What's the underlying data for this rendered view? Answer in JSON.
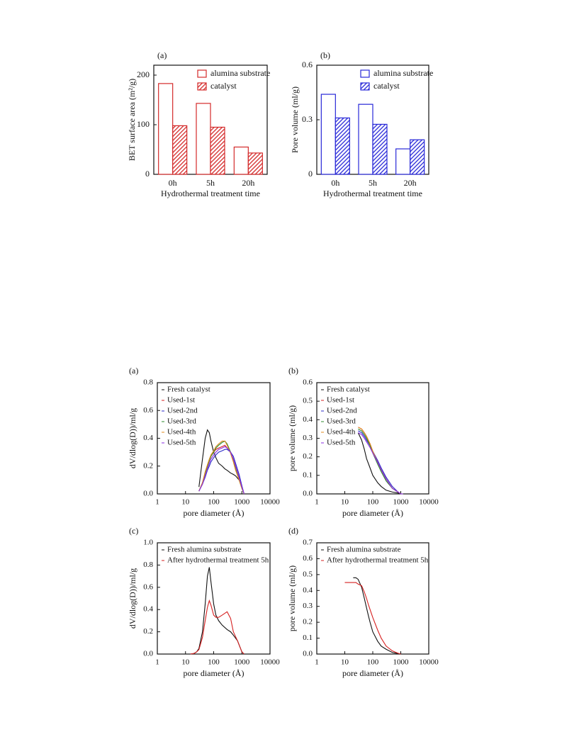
{
  "chart_data": [
    {
      "type": "bar",
      "panel_label": "(a)",
      "x_label": "Hydrothermal treatment time",
      "y_label": "BET surface area (m²/g)",
      "categories": [
        "0h",
        "5h",
        "20h"
      ],
      "series": [
        {
          "name": "alumina substrate",
          "color": "#d42a2a",
          "values": [
            183,
            143,
            55
          ]
        },
        {
          "name": "catalyst",
          "color": "#d42a2a",
          "values": [
            98,
            95,
            43
          ]
        }
      ],
      "ylim": [
        0,
        220
      ],
      "yticks": [
        0,
        100,
        200
      ],
      "legend": "upper right"
    },
    {
      "type": "bar",
      "panel_label": "(b)",
      "x_label": "Hydrothermal treatment time",
      "y_label": "Pore volume (ml/g)",
      "categories": [
        "0h",
        "5h",
        "20h"
      ],
      "series": [
        {
          "name": "alumina substrate",
          "color": "#2828d8",
          "values": [
            0.44,
            0.385,
            0.14
          ]
        },
        {
          "name": "catalyst",
          "color": "#2828d8",
          "values": [
            0.31,
            0.275,
            0.19
          ]
        }
      ],
      "ylim": [
        0,
        0.6
      ],
      "yticks": [
        0,
        0.3,
        0.6
      ],
      "legend": "upper right"
    },
    {
      "type": "line",
      "panel_label": "(a)",
      "x_label": "pore diameter (Å)",
      "y_label": "dV/dlog(D))/ml/g",
      "log_x": true,
      "x": [
        30,
        40,
        50,
        60,
        70,
        80,
        100,
        120,
        150,
        200,
        250,
        300,
        400,
        500,
        600,
        800,
        1000,
        1200
      ],
      "series": [
        {
          "name": "Fresh catalyst",
          "color": "#111111",
          "values": [
            0.05,
            0.25,
            0.4,
            0.46,
            0.44,
            0.38,
            0.3,
            0.26,
            0.22,
            0.2,
            0.18,
            0.17,
            0.15,
            0.14,
            0.13,
            0.1,
            0.05,
            0
          ]
        },
        {
          "name": "Used-1st",
          "color": "#d62020",
          "values": [
            0.02,
            0.08,
            0.15,
            0.2,
            0.24,
            0.27,
            0.3,
            0.32,
            0.33,
            0.34,
            0.35,
            0.33,
            0.3,
            0.25,
            0.2,
            0.12,
            0.05,
            0
          ]
        },
        {
          "name": "Used-2nd",
          "color": "#2c2cc8",
          "values": [
            0.02,
            0.07,
            0.12,
            0.17,
            0.2,
            0.23,
            0.26,
            0.28,
            0.3,
            0.31,
            0.32,
            0.32,
            0.3,
            0.27,
            0.22,
            0.14,
            0.06,
            0
          ]
        },
        {
          "name": "Used-3rd",
          "color": "#2e8b2e",
          "values": [
            0.02,
            0.08,
            0.15,
            0.2,
            0.24,
            0.27,
            0.3,
            0.33,
            0.35,
            0.37,
            0.38,
            0.36,
            0.3,
            0.24,
            0.18,
            0.1,
            0.04,
            0
          ]
        },
        {
          "name": "Used-4th",
          "color": "#e08a1e",
          "values": [
            0.02,
            0.08,
            0.16,
            0.21,
            0.25,
            0.28,
            0.31,
            0.34,
            0.36,
            0.38,
            0.38,
            0.35,
            0.29,
            0.23,
            0.17,
            0.1,
            0.04,
            0
          ]
        },
        {
          "name": "Used-5th",
          "color": "#8a2be2",
          "values": [
            0.02,
            0.07,
            0.13,
            0.18,
            0.22,
            0.25,
            0.28,
            0.3,
            0.32,
            0.33,
            0.34,
            0.33,
            0.3,
            0.25,
            0.2,
            0.12,
            0.05,
            0
          ]
        }
      ],
      "xlim": [
        1,
        10000
      ],
      "xticks": [
        1,
        10,
        100,
        1000,
        10000
      ],
      "ylim": [
        0,
        0.8
      ],
      "yticks": [
        {
          "value": 0,
          "label": "0.0"
        },
        0.2,
        0.4,
        0.6,
        0.8
      ],
      "legend": "upper left"
    },
    {
      "type": "line",
      "panel_label": "(b)",
      "x_label": "pore diameter (Å)",
      "y_label": "pore volume (ml/g)",
      "log_x": true,
      "x": [
        30,
        40,
        50,
        60,
        80,
        100,
        150,
        200,
        300,
        500,
        800,
        1000,
        1200
      ],
      "series": [
        {
          "name": "Fresh catalyst",
          "color": "#111111",
          "values": [
            0.33,
            0.29,
            0.24,
            0.19,
            0.14,
            0.1,
            0.06,
            0.04,
            0.02,
            0.01,
            0.005,
            0,
            0
          ]
        },
        {
          "name": "Used-1st",
          "color": "#d62020",
          "values": [
            0.36,
            0.35,
            0.33,
            0.31,
            0.27,
            0.23,
            0.17,
            0.13,
            0.08,
            0.03,
            0.01,
            0,
            0
          ]
        },
        {
          "name": "Used-2nd",
          "color": "#2c2cc8",
          "values": [
            0.34,
            0.33,
            0.31,
            0.29,
            0.26,
            0.23,
            0.18,
            0.14,
            0.09,
            0.04,
            0.01,
            0,
            0
          ]
        },
        {
          "name": "Used-3rd",
          "color": "#2e8b2e",
          "values": [
            0.35,
            0.34,
            0.32,
            0.3,
            0.26,
            0.22,
            0.16,
            0.12,
            0.07,
            0.03,
            0.01,
            0,
            0
          ]
        },
        {
          "name": "Used-4th",
          "color": "#e08a1e",
          "values": [
            0.36,
            0.35,
            0.33,
            0.31,
            0.27,
            0.23,
            0.17,
            0.13,
            0.08,
            0.03,
            0.01,
            0,
            0
          ]
        },
        {
          "name": "Used-5th",
          "color": "#8a2be2",
          "values": [
            0.33,
            0.32,
            0.3,
            0.28,
            0.25,
            0.22,
            0.17,
            0.13,
            0.08,
            0.03,
            0.01,
            0,
            0
          ]
        }
      ],
      "xlim": [
        1,
        10000
      ],
      "xticks": [
        1,
        10,
        100,
        1000,
        10000
      ],
      "ylim": [
        0,
        0.6
      ],
      "yticks": [
        {
          "value": 0,
          "label": "0.0"
        },
        0.1,
        0.2,
        0.3,
        0.4,
        0.5,
        0.6
      ],
      "legend": "upper left"
    },
    {
      "type": "line",
      "panel_label": "(c)",
      "x_label": "pore diameter (Å)",
      "y_label": "dV/dlog(D))/ml/g",
      "log_x": true,
      "x": [
        15,
        20,
        25,
        30,
        40,
        50,
        60,
        70,
        80,
        100,
        120,
        150,
        200,
        300,
        400,
        500,
        700,
        1000,
        1200
      ],
      "series": [
        {
          "name": "Fresh alumina substrate",
          "color": "#111111",
          "values": [
            0,
            0.005,
            0.02,
            0.05,
            0.2,
            0.45,
            0.7,
            0.78,
            0.65,
            0.45,
            0.35,
            0.3,
            0.26,
            0.22,
            0.2,
            0.17,
            0.12,
            0.02,
            0
          ]
        },
        {
          "name": "After hydrothermal treatment 5h",
          "color": "#d62020",
          "values": [
            0,
            0.005,
            0.02,
            0.04,
            0.15,
            0.3,
            0.42,
            0.48,
            0.44,
            0.35,
            0.33,
            0.33,
            0.35,
            0.38,
            0.32,
            0.2,
            0.12,
            0.02,
            0
          ]
        }
      ],
      "xlim": [
        1,
        10000
      ],
      "xticks": [
        1,
        10,
        100,
        1000,
        10000
      ],
      "ylim": [
        0,
        1.0
      ],
      "yticks": [
        {
          "value": 0,
          "label": "0.0"
        },
        0.2,
        0.4,
        0.6,
        0.8,
        {
          "value": 1,
          "label": "1.0"
        }
      ],
      "legend": "upper left"
    },
    {
      "type": "line",
      "panel_label": "(d)",
      "x_label": "pore diameter (Å)",
      "y_label": "pore volume (ml/g)",
      "log_x": true,
      "x": [
        10,
        15,
        20,
        25,
        30,
        40,
        50,
        60,
        70,
        80,
        100,
        150,
        200,
        300,
        500,
        800,
        1000
      ],
      "series": [
        {
          "name": "Fresh alumina substrate",
          "color": "#111111",
          "values": [
            null,
            null,
            0.48,
            0.48,
            0.47,
            0.42,
            0.35,
            0.29,
            0.24,
            0.2,
            0.14,
            0.08,
            0.05,
            0.03,
            0.01,
            0.003,
            0
          ]
        },
        {
          "name": "After hydrothermal treatment 5h",
          "color": "#d62020",
          "values": [
            0.45,
            0.45,
            0.45,
            0.45,
            0.44,
            0.43,
            0.39,
            0.35,
            0.31,
            0.28,
            0.23,
            0.15,
            0.1,
            0.05,
            0.02,
            0.005,
            0
          ]
        }
      ],
      "xlim": [
        1,
        10000
      ],
      "xticks": [
        1,
        10,
        100,
        1000,
        10000
      ],
      "ylim": [
        0,
        0.7
      ],
      "yticks": [
        {
          "value": 0,
          "label": "0.0"
        },
        0.1,
        0.2,
        0.3,
        0.4,
        0.5,
        0.6,
        0.7
      ],
      "legend": "upper left"
    }
  ]
}
